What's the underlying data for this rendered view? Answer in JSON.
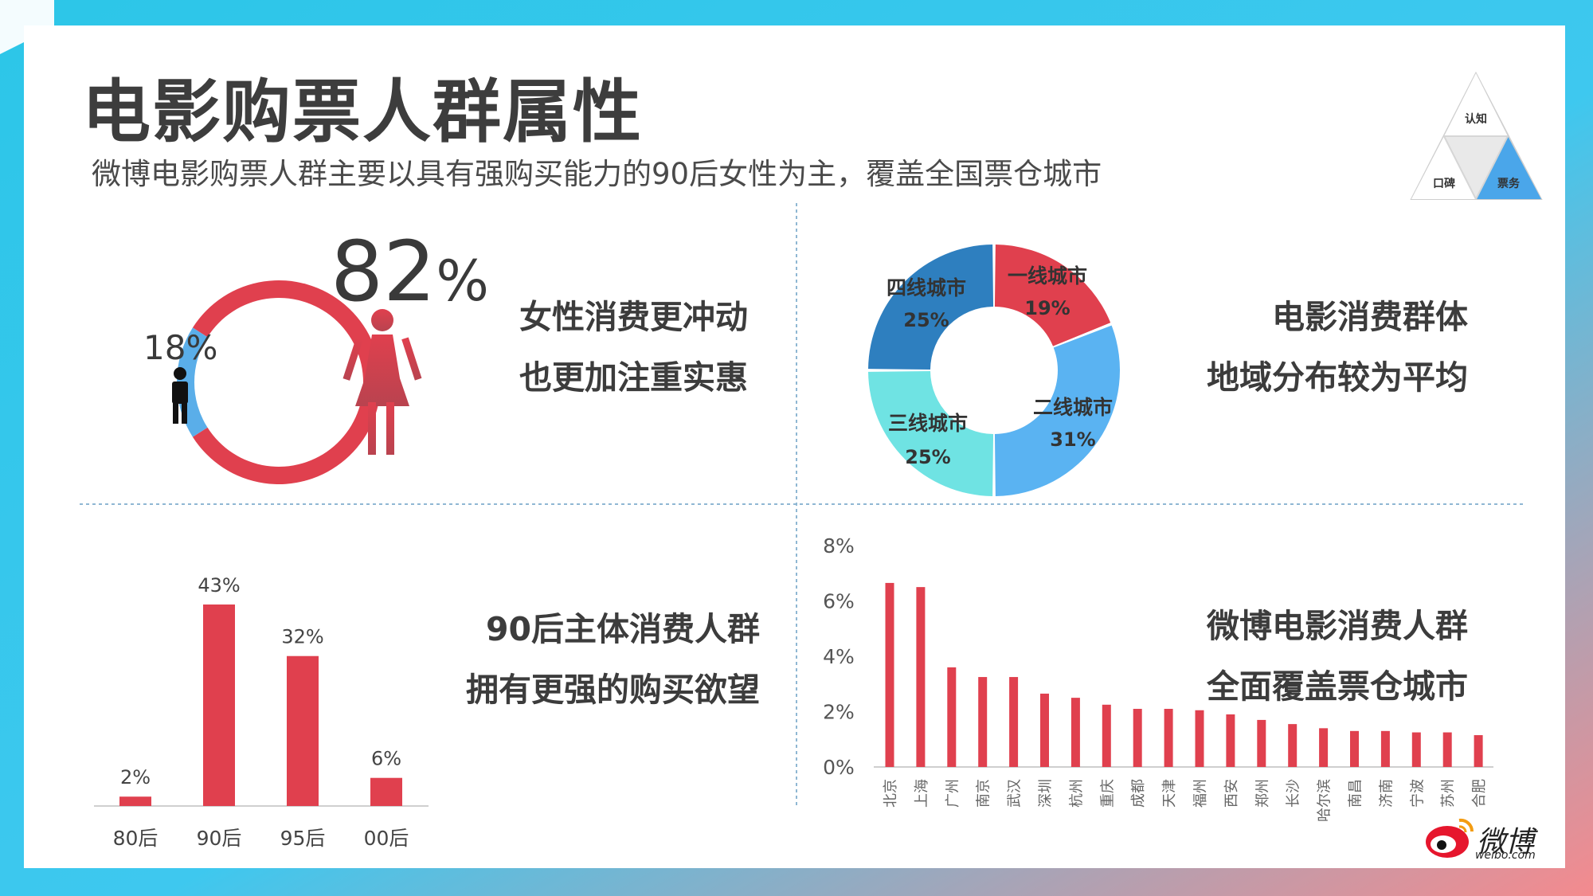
{
  "header": {
    "title": "电影购票人群属性",
    "subtitle": "微博电影购票人群主要以具有强购买能力的90后女性为主，覆盖全国票仓城市"
  },
  "badge": {
    "top": "认知",
    "left": "口碑",
    "right": "票务",
    "active": "票务",
    "accent_color": "#4aa6ea"
  },
  "gender": {
    "female_value": "82",
    "female_symbol": "%",
    "male_label": "18%",
    "claim_line1": "女性消费更冲动",
    "claim_line2": "也更加注重实惠",
    "female_color": "#e0404e",
    "male_color": "#5aaee9"
  },
  "region": {
    "claim_line1": "电影消费群体",
    "claim_line2": "地域分布较为平均"
  },
  "age": {
    "claim_line1": "90后主体消费人群",
    "claim_line2": "拥有更强的购买欲望"
  },
  "city": {
    "claim_line1": "微博电影消费人群",
    "claim_line2": "全面覆盖票仓城市"
  },
  "logo": {
    "name": "微博",
    "domain": "weibo.com"
  },
  "chart_data": [
    {
      "type": "pie",
      "variant": "donut",
      "labels": [
        "女性",
        "男性"
      ],
      "values": [
        82,
        18
      ],
      "colors": [
        "#e0404e",
        "#5aaee9"
      ]
    },
    {
      "type": "pie",
      "variant": "donut",
      "labels": [
        "一线城市",
        "二线城市",
        "三线城市",
        "四线城市"
      ],
      "values": [
        19,
        31,
        25,
        25
      ],
      "value_labels": [
        "19%",
        "31%",
        "25%",
        "25%"
      ],
      "colors": [
        "#e0404e",
        "#5ab3f2",
        "#6fe3e3",
        "#2e7fbf"
      ]
    },
    {
      "type": "bar",
      "categories": [
        "80后",
        "90后",
        "95后",
        "00后"
      ],
      "values": [
        2,
        43,
        32,
        6
      ],
      "value_labels": [
        "2%",
        "43%",
        "32%",
        "6%"
      ],
      "color": "#e0404e"
    },
    {
      "type": "bar",
      "categories": [
        "北京",
        "上海",
        "广州",
        "南京",
        "武汉",
        "深圳",
        "杭州",
        "重庆",
        "成都",
        "天津",
        "福州",
        "西安",
        "郑州",
        "长沙",
        "哈尔滨",
        "南昌",
        "济南",
        "宁波",
        "苏州",
        "合肥"
      ],
      "values": [
        6.65,
        6.5,
        3.6,
        3.25,
        3.25,
        2.65,
        2.5,
        2.25,
        2.1,
        2.1,
        2.05,
        1.9,
        1.7,
        1.55,
        1.4,
        1.3,
        1.3,
        1.25,
        1.25,
        1.15
      ],
      "ylim": [
        0,
        8
      ],
      "yticks": [
        "0%",
        "2%",
        "4%",
        "6%",
        "8%"
      ],
      "color": "#e0404e"
    }
  ]
}
